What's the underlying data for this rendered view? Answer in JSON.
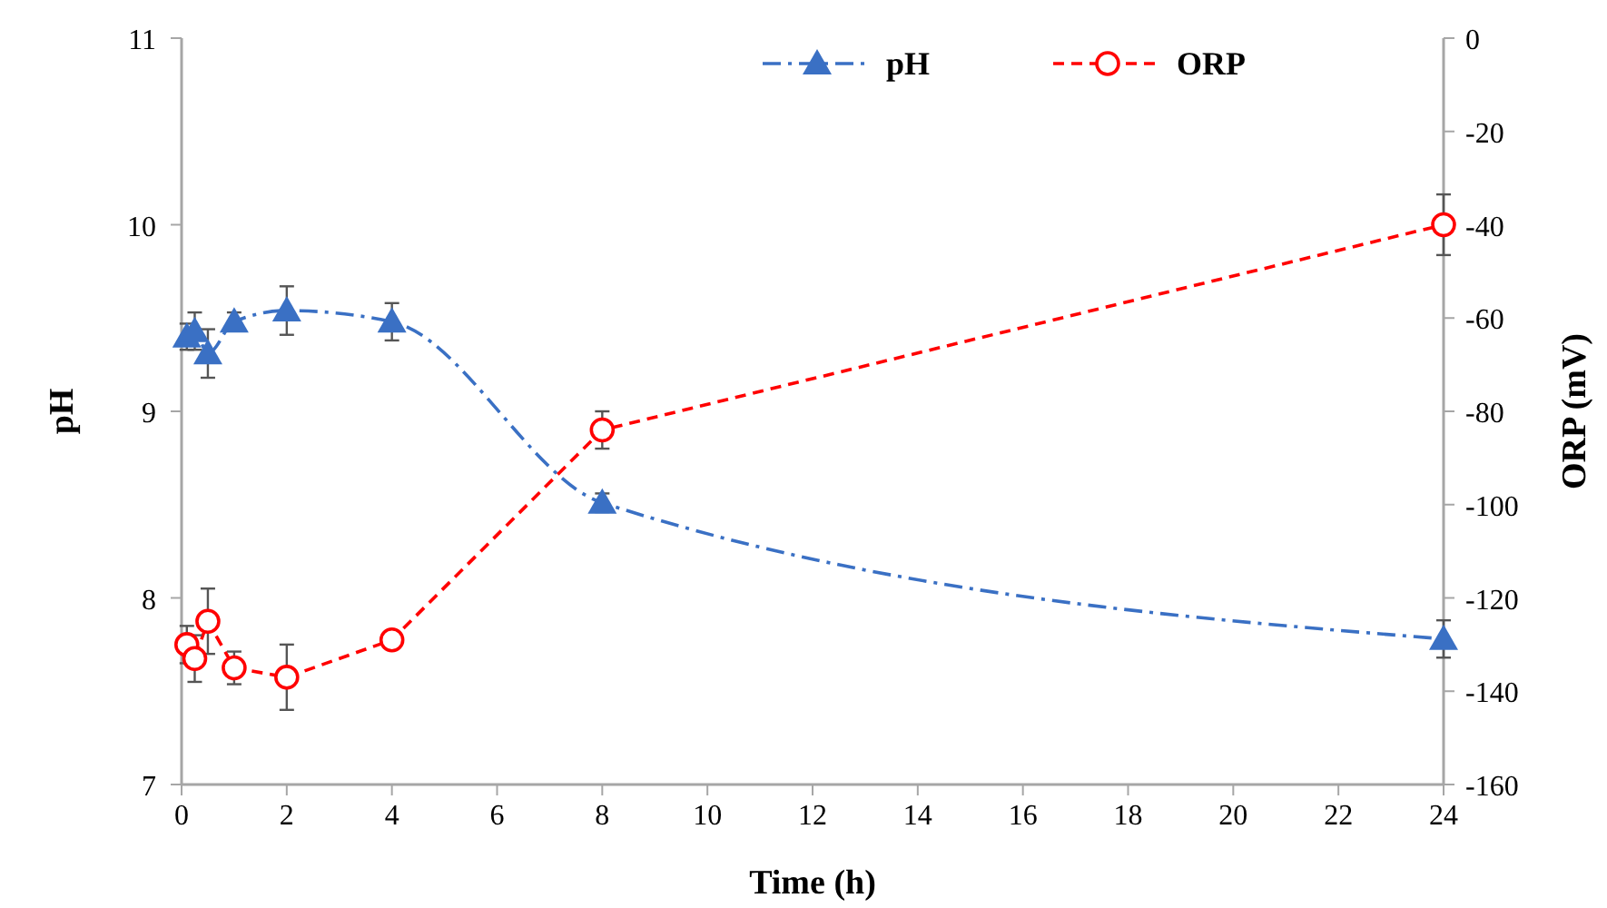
{
  "chart_data": {
    "type": "line",
    "xlabel": "Time (h)",
    "ylabel": "pH",
    "y2label": "ORP (mV)",
    "x": [
      0.1,
      0.25,
      0.5,
      1,
      2,
      4,
      8,
      24
    ],
    "xlim": [
      0,
      24
    ],
    "xticks": [
      0,
      2,
      4,
      6,
      8,
      10,
      12,
      14,
      16,
      18,
      20,
      22,
      24
    ],
    "ylim": [
      7,
      11
    ],
    "yticks": [
      7,
      8,
      9,
      10,
      11
    ],
    "y2lim": [
      -160,
      0
    ],
    "y2ticks": [
      -160,
      -140,
      -120,
      -100,
      -80,
      -60,
      -40,
      -20,
      0
    ],
    "legend": "top right",
    "grid": false,
    "series": [
      {
        "name": "pH",
        "color": "#3a70c4",
        "marker": "triangle",
        "line_style": "dotted",
        "values": [
          9.4,
          9.43,
          9.31,
          9.48,
          9.54,
          9.48,
          8.51,
          7.78
        ],
        "errors": [
          0.07,
          0.1,
          0.13,
          0.05,
          0.13,
          0.1,
          0.05,
          0.1
        ]
      },
      {
        "name": "ORP",
        "color": "#ff0000",
        "marker": "circle",
        "line_style": "dashed",
        "axis": "y2",
        "values": [
          -130,
          -133,
          -125,
          -135,
          -137,
          -129,
          -84,
          -40
        ],
        "errors": [
          4,
          5,
          7,
          3.5,
          7,
          null,
          4,
          6.5
        ]
      }
    ]
  }
}
